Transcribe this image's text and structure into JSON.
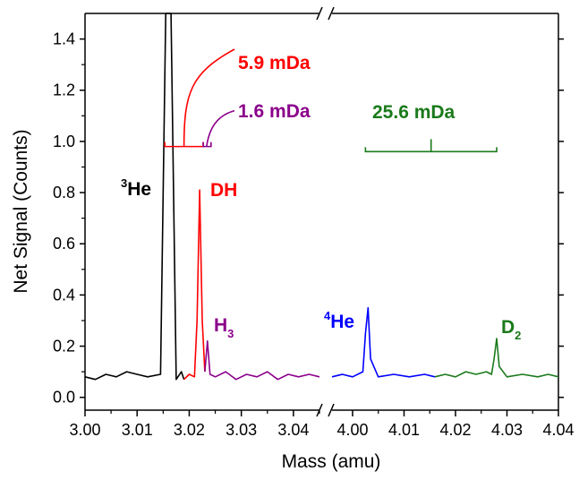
{
  "chart_data": {
    "type": "line",
    "xlabel": "Mass (amu)",
    "ylabel": "Net Signal (Counts)",
    "ylim": [
      -0.05,
      1.5
    ],
    "y_ticks": [
      "0.0",
      "0.2",
      "0.4",
      "0.6",
      "0.8",
      "1.0",
      "1.2",
      "1.4"
    ],
    "x_broken_axis": true,
    "left_segment": {
      "xlim": [
        3.0,
        3.045
      ],
      "x_ticks": [
        "3.00",
        "3.01",
        "3.02",
        "3.03",
        "3.04"
      ]
    },
    "right_segment": {
      "xlim": [
        3.996,
        4.04
      ],
      "x_ticks": [
        "4.00",
        "4.01",
        "4.02",
        "4.03",
        "4.04"
      ]
    },
    "grid": false,
    "series": [
      {
        "name": "3He",
        "color": "#000000",
        "segment": "left",
        "x": [
          3.0,
          3.002,
          3.004,
          3.006,
          3.008,
          3.01,
          3.012,
          3.0145,
          3.0155,
          3.016,
          3.0165,
          3.0175,
          3.0185,
          3.019
        ],
        "y": [
          0.08,
          0.07,
          0.09,
          0.08,
          0.1,
          0.09,
          0.08,
          0.09,
          1.5,
          1.5,
          1.5,
          0.07,
          0.1,
          0.07
        ]
      },
      {
        "name": "DH",
        "color": "#ff0000",
        "segment": "left",
        "x": [
          3.019,
          3.02,
          3.021,
          3.0215,
          3.022,
          3.0225,
          3.023
        ],
        "y": [
          0.07,
          0.09,
          0.08,
          0.3,
          0.81,
          0.3,
          0.1
        ]
      },
      {
        "name": "H3",
        "color": "#8b008b",
        "segment": "left",
        "x": [
          3.023,
          3.0235,
          3.024,
          3.025,
          3.027,
          3.029,
          3.031,
          3.033,
          3.035,
          3.037,
          3.039,
          3.041,
          3.043,
          3.045
        ],
        "y": [
          0.1,
          0.22,
          0.09,
          0.08,
          0.1,
          0.07,
          0.09,
          0.08,
          0.1,
          0.07,
          0.09,
          0.08,
          0.09,
          0.08
        ]
      },
      {
        "name": "4He",
        "color": "#0000ff",
        "segment": "right",
        "x": [
          3.996,
          3.998,
          4.0,
          4.002,
          4.0025,
          4.003,
          4.0035,
          4.005,
          4.008,
          4.011,
          4.014,
          4.016
        ],
        "y": [
          0.08,
          0.09,
          0.08,
          0.1,
          0.25,
          0.35,
          0.15,
          0.08,
          0.09,
          0.08,
          0.09,
          0.08
        ]
      },
      {
        "name": "D2",
        "color": "#1a7a1a",
        "segment": "right",
        "x": [
          4.016,
          4.018,
          4.02,
          4.022,
          4.024,
          4.026,
          4.027,
          4.0275,
          4.028,
          4.0285,
          4.03,
          4.033,
          4.036,
          4.038,
          4.04
        ],
        "y": [
          0.08,
          0.09,
          0.08,
          0.1,
          0.09,
          0.1,
          0.09,
          0.15,
          0.23,
          0.12,
          0.08,
          0.09,
          0.08,
          0.09,
          0.08
        ]
      }
    ],
    "annotations": [
      {
        "label": "5.9 mDa",
        "color": "#ff0000"
      },
      {
        "label": "1.6 mDa",
        "color": "#8b008b"
      },
      {
        "label": "25.6 mDa",
        "color": "#1a7a1a"
      },
      {
        "label": "He",
        "sup": "3",
        "color": "#000000"
      },
      {
        "label": "DH",
        "color": "#ff0000"
      },
      {
        "label": "H",
        "sub": "3",
        "color": "#8b008b"
      },
      {
        "label": "He",
        "sup": "4",
        "color": "#0000ff"
      },
      {
        "label": "D",
        "sub": "2",
        "color": "#1a7a1a"
      }
    ],
    "break_marker": "//"
  }
}
